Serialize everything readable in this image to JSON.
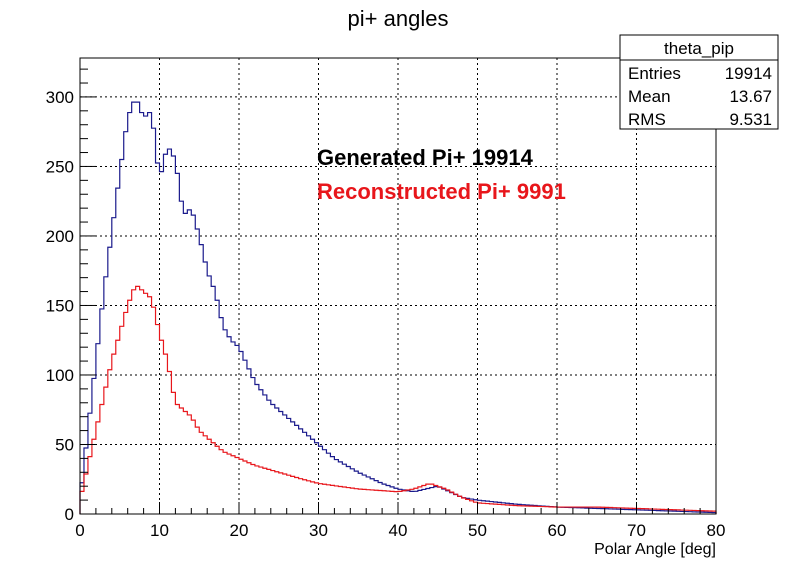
{
  "chart_data": {
    "type": "histogram",
    "title": "pi+ angles",
    "xlabel": "Polar Angle [deg]",
    "ylabel": "",
    "xlim": [
      0,
      80
    ],
    "ylim": [
      0,
      328
    ],
    "grid": true,
    "x_ticks": [
      0,
      10,
      20,
      30,
      40,
      50,
      60,
      70,
      80
    ],
    "y_ticks": [
      0,
      50,
      100,
      150,
      200,
      250,
      300
    ],
    "bin_width": 0.5,
    "stats_box": {
      "name": "theta_pip",
      "rows": [
        {
          "label": "Entries",
          "value": "19914"
        },
        {
          "label": "Mean",
          "value": "13.67"
        },
        {
          "label": "RMS",
          "value": "9.531"
        }
      ]
    },
    "annotations": [
      {
        "text": "Generated Pi+ 19914",
        "color": "#000000"
      },
      {
        "text": "Reconstructed Pi+ 9991",
        "color": "#e8161b"
      }
    ],
    "series": [
      {
        "color": "#1a1a8c",
        "x": [
          0,
          3,
          5,
          6,
          7,
          8,
          9,
          10,
          11,
          12,
          13,
          14,
          15,
          16,
          17,
          18,
          19,
          20,
          22,
          24,
          25,
          26,
          28,
          30,
          32,
          35,
          38,
          40,
          42,
          45,
          48,
          50,
          55,
          60,
          65,
          70,
          75,
          80
        ],
        "y": [
          10,
          160,
          245,
          285,
          300,
          285,
          290,
          240,
          265,
          255,
          215,
          220,
          200,
          175,
          160,
          135,
          125,
          120,
          95,
          80,
          75,
          70,
          60,
          50,
          40,
          30,
          22,
          18,
          16,
          20,
          12,
          10,
          7,
          5,
          4,
          3,
          2,
          1
        ]
      },
      {
        "color": "#e8161b",
        "x": [
          0,
          2,
          4,
          6,
          7,
          8,
          9,
          10,
          11,
          12,
          13,
          14,
          15,
          16,
          18,
          20,
          22,
          25,
          28,
          30,
          35,
          40,
          42,
          44,
          46,
          48,
          50,
          55,
          60,
          65,
          70,
          75,
          80
        ],
        "y": [
          10,
          60,
          110,
          150,
          165,
          160,
          155,
          130,
          110,
          80,
          75,
          70,
          60,
          55,
          45,
          40,
          35,
          30,
          25,
          22,
          18,
          16,
          18,
          22,
          18,
          12,
          8,
          6,
          5,
          5,
          4,
          3,
          2
        ]
      }
    ]
  }
}
